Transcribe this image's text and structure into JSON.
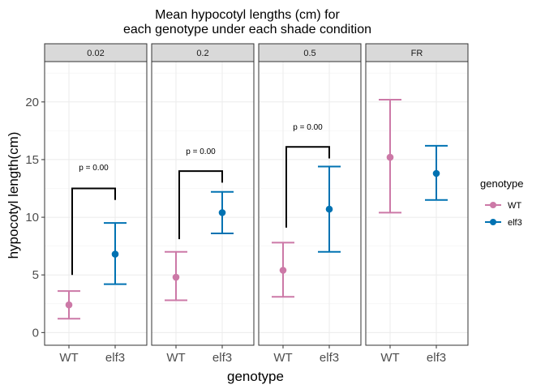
{
  "chart_data": {
    "type": "errorbar",
    "title": [
      "Mean hypocotyl lengths (cm) for",
      "each genotype under each shade condition"
    ],
    "xlabel": "genotype",
    "ylabel": "hypocotyl length(cm)",
    "ylim": [
      -1.1,
      23.5
    ],
    "yticks": [
      0,
      5,
      10,
      15,
      20
    ],
    "categories": [
      "WT",
      "elf3"
    ],
    "facets": [
      {
        "label": "0.02",
        "points": [
          {
            "genotype": "WT",
            "mean": 2.4,
            "lower": 1.2,
            "upper": 3.6
          },
          {
            "genotype": "elf3",
            "mean": 6.8,
            "lower": 4.2,
            "upper": 9.5
          }
        ],
        "bracket": {
          "low": 5.0,
          "high": 12.5,
          "label": "p = 0.00",
          "label_y": 14.3
        }
      },
      {
        "label": "0.2",
        "points": [
          {
            "genotype": "WT",
            "mean": 4.8,
            "lower": 2.8,
            "upper": 7.0
          },
          {
            "genotype": "elf3",
            "mean": 10.4,
            "lower": 8.6,
            "upper": 12.2
          }
        ],
        "bracket": {
          "low": 8.1,
          "high": 14.0,
          "label": "p = 0.00",
          "label_y": 15.7
        }
      },
      {
        "label": "0.5",
        "points": [
          {
            "genotype": "WT",
            "mean": 5.4,
            "lower": 3.1,
            "upper": 7.8
          },
          {
            "genotype": "elf3",
            "mean": 10.7,
            "lower": 7.0,
            "upper": 14.4
          }
        ],
        "bracket": {
          "low": 9.1,
          "high": 16.1,
          "label": "p = 0.00",
          "label_y": 17.8
        }
      },
      {
        "label": "FR",
        "points": [
          {
            "genotype": "WT",
            "mean": 15.2,
            "lower": 10.4,
            "upper": 20.2
          },
          {
            "genotype": "elf3",
            "mean": 13.8,
            "lower": 11.5,
            "upper": 16.2
          }
        ],
        "bracket": null
      }
    ],
    "legend": {
      "title": "genotype",
      "position": "right",
      "entries": [
        {
          "label": "WT",
          "color": "#CC79A7"
        },
        {
          "label": "elf3",
          "color": "#0072B2"
        }
      ]
    },
    "grid": true
  }
}
